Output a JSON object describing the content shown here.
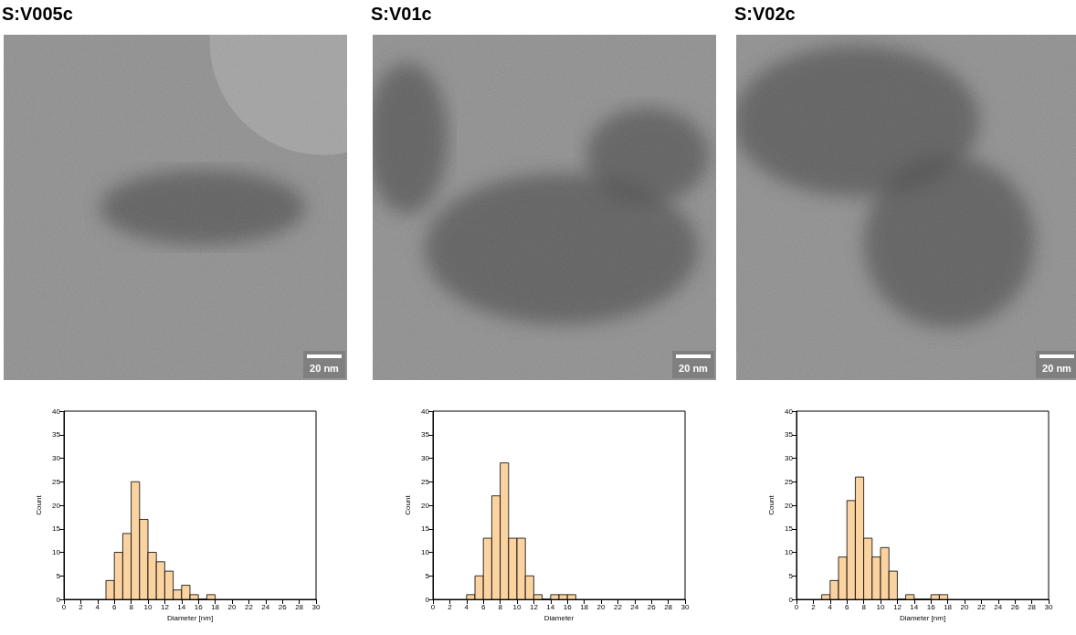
{
  "chart_data": [
    {
      "type": "histogram",
      "title": "S:V005c",
      "bins": [
        5,
        6,
        7,
        8,
        9,
        10,
        11,
        12,
        13,
        14,
        15,
        16,
        17,
        18
      ],
      "counts": [
        4,
        10,
        14,
        25,
        17,
        10,
        8,
        6,
        2,
        3,
        1,
        0,
        1
      ],
      "color": "#fbd3a0",
      "x_label": "Diameter [nm]",
      "y_label": "Count",
      "xlim": [
        0,
        30
      ],
      "xticks": [
        0,
        2,
        4,
        6,
        8,
        10,
        12,
        14,
        16,
        18,
        20,
        22,
        24,
        26,
        28,
        30
      ],
      "ylim": [
        0,
        40
      ],
      "yticks": [
        0,
        5,
        10,
        15,
        20,
        25,
        30,
        35,
        40
      ],
      "grid": false
    },
    {
      "type": "histogram",
      "title": "S:V01c",
      "bins": [
        4,
        5,
        6,
        7,
        8,
        9,
        10,
        11,
        12,
        13,
        14,
        15,
        16,
        17
      ],
      "counts": [
        1,
        5,
        13,
        22,
        29,
        13,
        13,
        5,
        1,
        0,
        1,
        1,
        1
      ],
      "color": "#fbd3a0",
      "x_label": "Diameter",
      "y_label": "Count",
      "xlim": [
        0,
        30
      ],
      "xticks": [
        0,
        2,
        4,
        6,
        8,
        10,
        12,
        14,
        16,
        18,
        20,
        22,
        24,
        26,
        28,
        30
      ],
      "ylim": [
        0,
        40
      ],
      "yticks": [
        0,
        5,
        10,
        15,
        20,
        25,
        30,
        35,
        40
      ],
      "grid": false
    },
    {
      "type": "histogram",
      "title": "S:V02c",
      "bins": [
        3,
        4,
        5,
        6,
        7,
        8,
        9,
        10,
        11,
        12,
        13,
        14,
        15,
        16,
        17,
        18
      ],
      "counts": [
        1,
        4,
        9,
        21,
        26,
        13,
        9,
        11,
        6,
        0,
        1,
        0,
        0,
        1,
        1
      ],
      "color": "#fbd3a0",
      "x_label": "Diameter [nm]",
      "y_label": "Count",
      "xlim": [
        0,
        30
      ],
      "xticks": [
        0,
        2,
        4,
        6,
        8,
        10,
        12,
        14,
        16,
        18,
        20,
        22,
        24,
        26,
        28,
        30
      ],
      "ylim": [
        0,
        40
      ],
      "yticks": [
        0,
        5,
        10,
        15,
        20,
        25,
        30,
        35,
        40
      ],
      "grid": false
    }
  ],
  "micrographs": [
    {
      "scale_bar": "20 nm"
    },
    {
      "scale_bar": "20 nm"
    },
    {
      "scale_bar": "20 nm"
    }
  ]
}
